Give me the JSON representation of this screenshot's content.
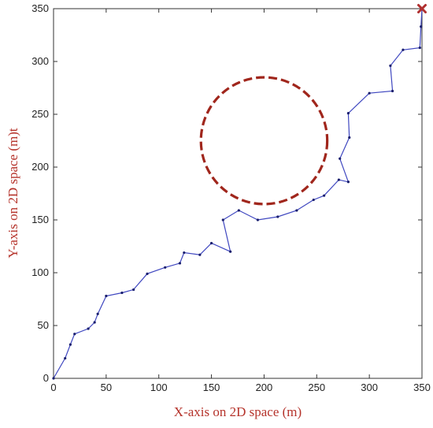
{
  "colors": {
    "axis_title": "#b5332b",
    "path": "#3f47c0",
    "obstacle": "#a0261c",
    "goal_marker": "#b03030"
  },
  "chart_data": {
    "type": "line",
    "title": "",
    "xlabel": "X-axis on 2D space (m)",
    "ylabel": "Y-axis on 2D space (m)t",
    "xlim": [
      0,
      350
    ],
    "ylim": [
      0,
      350
    ],
    "x_ticks": [
      0,
      50,
      100,
      150,
      200,
      250,
      300,
      350
    ],
    "y_ticks": [
      0,
      50,
      100,
      150,
      200,
      250,
      300,
      350
    ],
    "grid": false,
    "legend": "none",
    "path_points": [
      [
        0,
        0
      ],
      [
        11,
        19
      ],
      [
        16,
        32
      ],
      [
        20,
        42
      ],
      [
        33,
        47
      ],
      [
        39,
        53
      ],
      [
        42,
        61
      ],
      [
        50,
        78
      ],
      [
        65,
        81
      ],
      [
        76,
        84
      ],
      [
        89,
        99
      ],
      [
        106,
        105
      ],
      [
        120,
        109
      ],
      [
        124,
        119
      ],
      [
        139,
        117
      ],
      [
        150,
        128
      ],
      [
        168,
        120
      ],
      [
        161,
        150
      ],
      [
        176,
        159
      ],
      [
        194,
        150
      ],
      [
        213,
        153
      ],
      [
        231,
        159
      ],
      [
        247,
        169
      ],
      [
        257,
        173
      ],
      [
        271,
        188
      ],
      [
        280,
        186
      ],
      [
        272,
        208
      ],
      [
        281,
        228
      ],
      [
        280,
        251
      ],
      [
        300,
        270
      ],
      [
        322,
        272
      ],
      [
        320,
        296
      ],
      [
        332,
        311
      ],
      [
        348,
        313
      ],
      [
        349,
        333
      ],
      [
        350,
        350
      ]
    ],
    "obstacle": {
      "center": [
        200,
        225
      ],
      "radius": 60
    },
    "goal": [
      350,
      350
    ]
  }
}
